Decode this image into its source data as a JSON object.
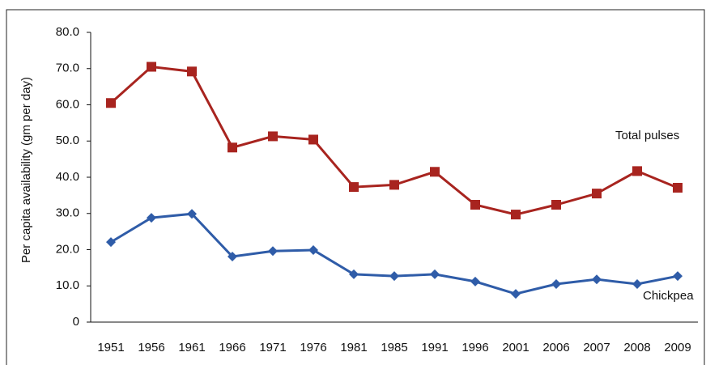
{
  "chart_data": {
    "type": "line",
    "y_label": "Per capita availability (gm per day)",
    "categories": [
      "1951",
      "1956",
      "1961",
      "1966",
      "1971",
      "1976",
      "1981",
      "1985",
      "1991",
      "1996",
      "2001",
      "2006",
      "2007",
      "2008",
      "2009"
    ],
    "series": [
      {
        "name": "Total pulses",
        "color": "#a8241f",
        "marker": "square",
        "values": [
          60.5,
          70.5,
          69.2,
          48.2,
          51.3,
          50.4,
          37.3,
          37.9,
          41.5,
          32.4,
          29.7,
          32.4,
          35.5,
          41.7,
          37.1
        ]
      },
      {
        "name": "Chickpea",
        "color": "#2f5ca8",
        "marker": "diamond",
        "values": [
          22.1,
          28.8,
          29.9,
          18.1,
          19.6,
          19.9,
          13.2,
          12.7,
          13.2,
          11.2,
          7.8,
          10.5,
          11.8,
          10.5,
          12.7
        ]
      }
    ],
    "ylim": [
      0,
      80
    ],
    "yticks": [
      0,
      {
        "value": 10,
        "label": "10.0"
      },
      {
        "value": 20,
        "label": "20.0"
      },
      {
        "value": 30,
        "label": "30.0"
      },
      {
        "value": 40,
        "label": "40.0"
      },
      {
        "value": 50,
        "label": "50.0"
      },
      {
        "value": 60,
        "label": "60.0"
      },
      {
        "value": 70,
        "label": "70.0"
      },
      {
        "value": 80,
        "label": "80.0"
      }
    ]
  }
}
